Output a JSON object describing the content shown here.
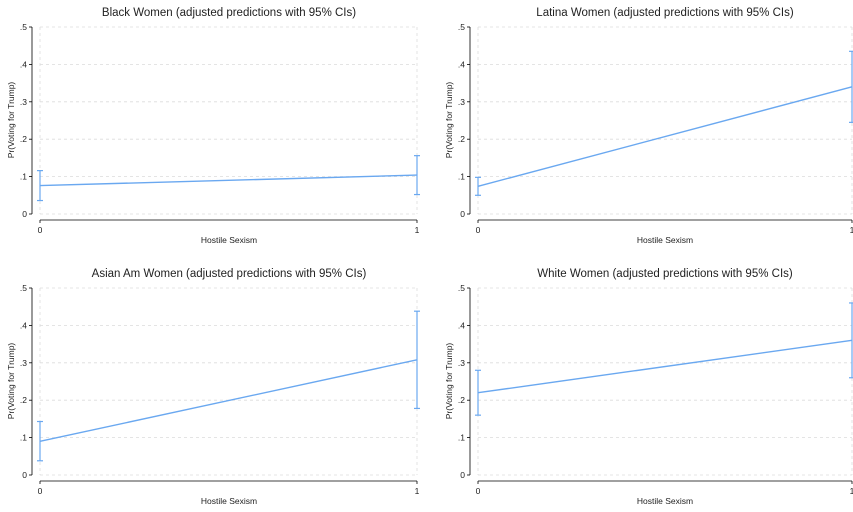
{
  "colors": {
    "line": "#6aa8f0",
    "grid": "#dcdcdc",
    "axis": "#000000",
    "background": "#ffffff"
  },
  "chart_data": [
    {
      "type": "line",
      "title": "Black Women (adjusted predictions with 95% CIs)",
      "xlabel": "Hostile Sexism",
      "ylabel": "Pr(Voting for Trump)",
      "x": [
        0,
        1
      ],
      "xticks": [
        "0",
        "1"
      ],
      "yticks": [
        "0",
        ".1",
        ".2",
        ".3",
        ".4",
        ".5"
      ],
      "ylim": [
        0,
        0.5
      ],
      "grid": true,
      "series": [
        {
          "values": [
            0.076,
            0.104
          ],
          "ci_low": [
            0.036,
            0.052
          ],
          "ci_high": [
            0.116,
            0.156
          ]
        }
      ]
    },
    {
      "type": "line",
      "title": "Latina Women (adjusted predictions with 95% CIs)",
      "xlabel": "Hostile Sexism",
      "ylabel": "Pr(Voting for Trump)",
      "x": [
        0,
        1
      ],
      "xticks": [
        "0",
        "1"
      ],
      "yticks": [
        "0",
        ".1",
        ".2",
        ".3",
        ".4",
        ".5"
      ],
      "ylim": [
        0,
        0.5
      ],
      "grid": true,
      "series": [
        {
          "values": [
            0.074,
            0.34
          ],
          "ci_low": [
            0.05,
            0.245
          ],
          "ci_high": [
            0.098,
            0.435
          ]
        }
      ]
    },
    {
      "type": "line",
      "title": "Asian Am Women (adjusted predictions with 95% CIs)",
      "xlabel": "Hostile Sexism",
      "ylabel": "Pr(Voting for Trump)",
      "x": [
        0,
        1
      ],
      "xticks": [
        "0",
        "1"
      ],
      "yticks": [
        "0",
        ".1",
        ".2",
        ".3",
        ".4",
        ".5"
      ],
      "ylim": [
        0,
        0.5
      ],
      "grid": true,
      "series": [
        {
          "values": [
            0.09,
            0.308
          ],
          "ci_low": [
            0.038,
            0.178
          ],
          "ci_high": [
            0.143,
            0.438
          ]
        }
      ]
    },
    {
      "type": "line",
      "title": "White Women (adjusted predictions with 95% CIs)",
      "xlabel": "Hostile Sexism",
      "ylabel": "Pr(Voting for Trump)",
      "x": [
        0,
        1
      ],
      "xticks": [
        "0",
        "1"
      ],
      "yticks": [
        "0",
        ".1",
        ".2",
        ".3",
        ".4",
        ".5"
      ],
      "ylim": [
        0,
        0.5
      ],
      "grid": true,
      "series": [
        {
          "values": [
            0.22,
            0.36
          ],
          "ci_low": [
            0.16,
            0.26
          ],
          "ci_high": [
            0.28,
            0.46
          ]
        }
      ]
    }
  ]
}
